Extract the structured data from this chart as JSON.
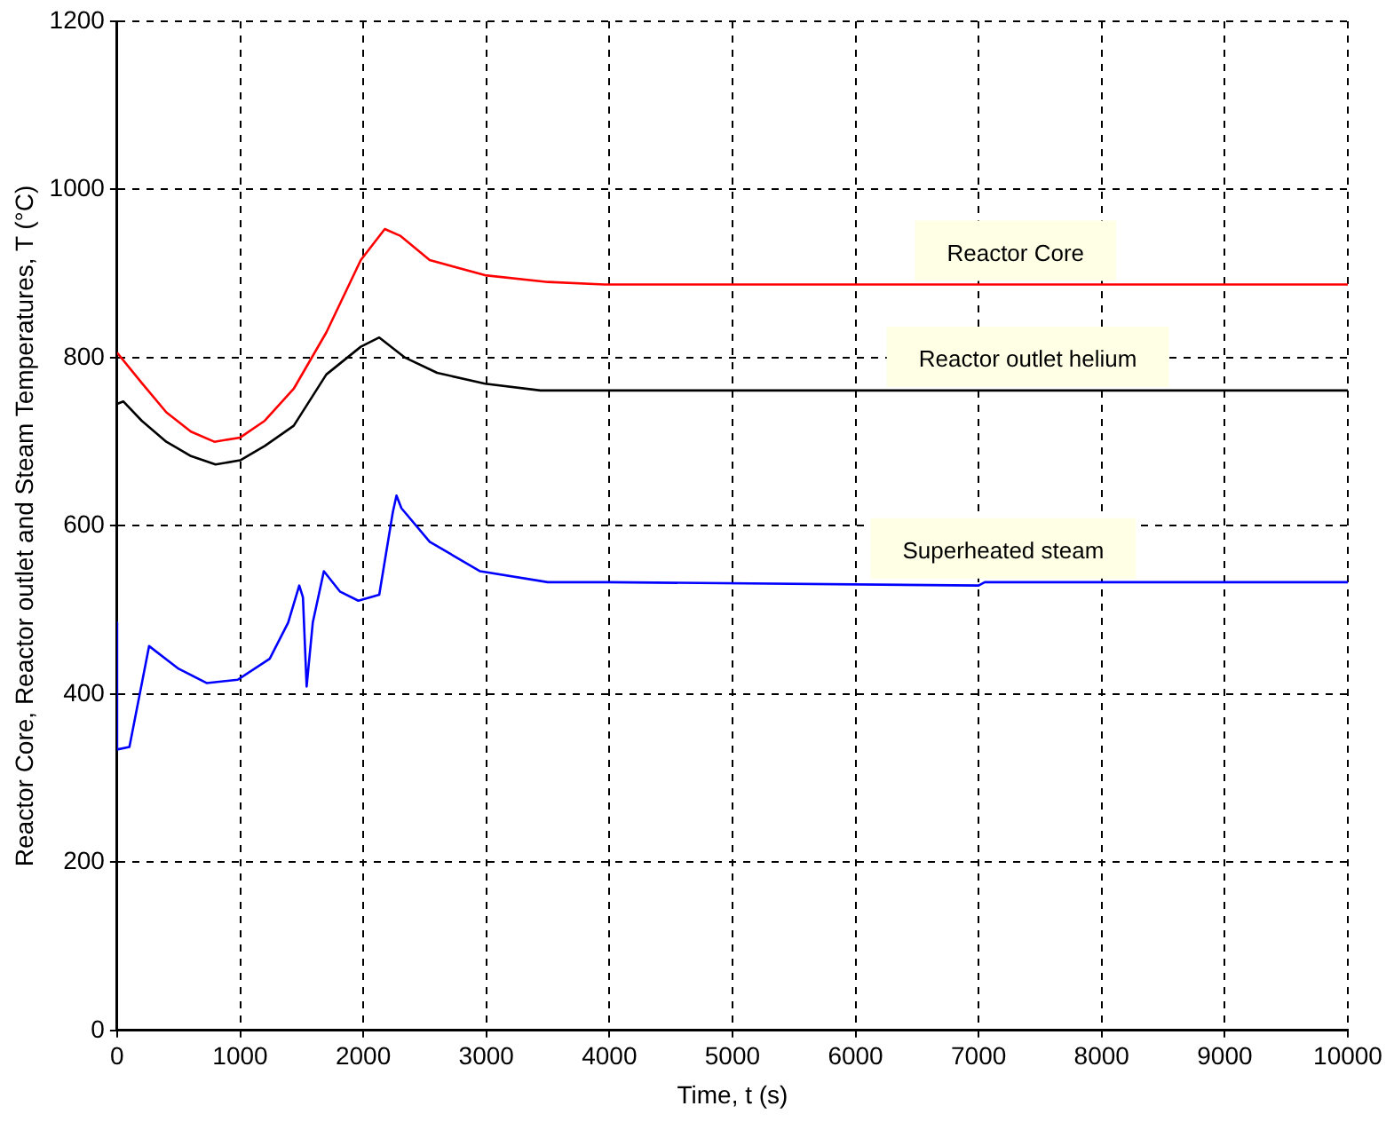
{
  "chart_data": {
    "type": "line",
    "xlabel": "Time, t (s)",
    "ylabel": "Reactor Core, Reactor outlet and Steam Temperatures, T (°C)",
    "xlim": [
      0,
      10000
    ],
    "xticks": [
      0,
      1000,
      2000,
      3000,
      4000,
      5000,
      6000,
      7000,
      8000,
      9000,
      10000
    ],
    "ylim": [
      0,
      1200
    ],
    "yticks": [
      0,
      200,
      400,
      600,
      800,
      1000,
      1200
    ],
    "grid": true,
    "legend": false,
    "marker": "none",
    "line_style": "solid",
    "series": [
      {
        "name": "Reactor Core",
        "color": "#ff0000",
        "x": [
          0,
          200,
          400,
          600,
          790,
          1000,
          1200,
          1435,
          1700,
          1980,
          2175,
          2300,
          2540,
          2990,
          3500,
          3960,
          5000,
          7000,
          10000
        ],
        "values": [
          806,
          770,
          735,
          712,
          700,
          705,
          725,
          763,
          830,
          916,
          953,
          945,
          916,
          898,
          890,
          887,
          887,
          887,
          887
        ]
      },
      {
        "name": "Reactor outlet helium",
        "color": "#000000",
        "x": [
          0,
          50,
          200,
          400,
          600,
          800,
          1000,
          1200,
          1435,
          1700,
          1980,
          2130,
          2340,
          2600,
          2990,
          3440,
          4000,
          7000,
          10000
        ],
        "values": [
          745,
          748,
          725,
          700,
          683,
          673,
          678,
          695,
          719,
          780,
          813,
          824,
          800,
          782,
          769,
          761,
          761,
          761,
          761
        ]
      },
      {
        "name": "Superheated steam",
        "color": "#0000ff",
        "x": [
          0,
          0,
          100,
          260,
          500,
          730,
          980,
          1240,
          1390,
          1480,
          1510,
          1540,
          1590,
          1680,
          1810,
          1960,
          2130,
          2240,
          2270,
          2310,
          2540,
          2950,
          3500,
          4000,
          7000,
          7050,
          10000
        ],
        "values": [
          485,
          334,
          337,
          457,
          430,
          413,
          417,
          442,
          485,
          529,
          515,
          409,
          485,
          546,
          522,
          511,
          518,
          616,
          636,
          621,
          581,
          546,
          533,
          533,
          529,
          533,
          533
        ]
      }
    ]
  }
}
